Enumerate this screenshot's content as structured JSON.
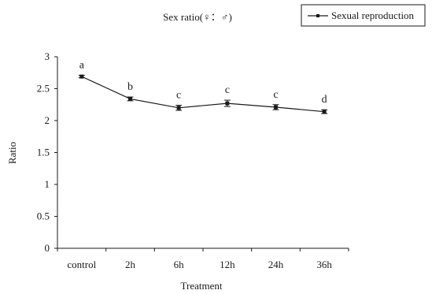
{
  "chart_data": {
    "type": "line",
    "title": "Sex ratio(♀：♂)",
    "xlabel": "Treatment",
    "ylabel": "Ratio",
    "categories": [
      "control",
      "2h",
      "6h",
      "12h",
      "24h",
      "36h"
    ],
    "ylim": [
      0,
      3
    ],
    "yticks": [
      "0",
      "0.5",
      "1",
      "1.5",
      "2",
      "2.5",
      "3"
    ],
    "grid": false,
    "legend_position": "top-right",
    "series": [
      {
        "name": "Sexual reproduction",
        "values": [
          2.69,
          2.34,
          2.2,
          2.27,
          2.21,
          2.14
        ],
        "errors": [
          0.02,
          0.03,
          0.04,
          0.05,
          0.04,
          0.03
        ],
        "significance": [
          "a",
          "b",
          "c",
          "c",
          "c",
          "d"
        ]
      }
    ]
  }
}
